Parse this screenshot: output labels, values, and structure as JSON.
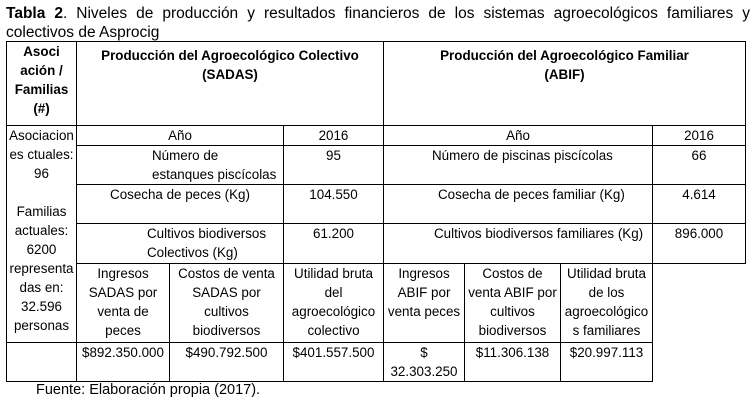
{
  "caption": {
    "label": "Tabla 2",
    "text": ". Niveles de producción y resultados financieros de los sistemas agroecológicos familiares y colectivos de Asprocig"
  },
  "header": {
    "col1": "Asoci ación / Familias (#)",
    "col1_lines": [
      "Asoci",
      "ación /",
      "Familias",
      "(#)"
    ],
    "sadas_line1": "Producción del Agroecológico Colectivo",
    "sadas_line2": "(SADAS)",
    "abif_line1": "Producción del Agroecológico Familiar",
    "abif_line2": "(ABIF)"
  },
  "left_column": {
    "lines_a": [
      "Asociacion",
      "es ctuales:",
      "96"
    ],
    "lines_b": [
      "Familias",
      "actuales:",
      "6200",
      "representa",
      "das en:",
      "32.596",
      "personas"
    ]
  },
  "rows": {
    "year": {
      "label_sadas": "Año",
      "value_sadas": "2016",
      "label_abif": "Año",
      "value_abif": "2016"
    },
    "ponds": {
      "label_sadas": "Número de estanques piscícolas",
      "value_sadas": "95",
      "label_abif": "Número de piscinas piscícolas",
      "value_abif": "66"
    },
    "harvest": {
      "label_sadas": "Cosecha de peces (Kg)",
      "value_sadas": "104.550",
      "label_abif": "Cosecha de peces familiar (Kg)",
      "value_abif": "4.614"
    },
    "crops": {
      "label_sadas": "Cultivos biodiversos Colectivos (Kg)",
      "value_sadas": "61.200",
      "label_abif": "Cultivos biodiversos familiares (Kg)",
      "value_abif": "896.000"
    }
  },
  "financial": {
    "headers": [
      "Ingresos SADAS por venta de peces",
      "Costos de venta SADAS por cultivos biodiversos",
      "Utilidad bruta del agroecológico colectivo",
      "Ingresos ABIF por venta peces",
      "Costos de venta ABIF por cultivos biodiversos",
      "Utilidad bruta de los agroecológico s familiares"
    ],
    "values": [
      "$892.350.000",
      "$490.792.500",
      "$401.557.500",
      "$ 32.303.250",
      "$11.306.138",
      "$20.997.113"
    ]
  },
  "footer": "Fuente: Elaboración propia (2017)."
}
